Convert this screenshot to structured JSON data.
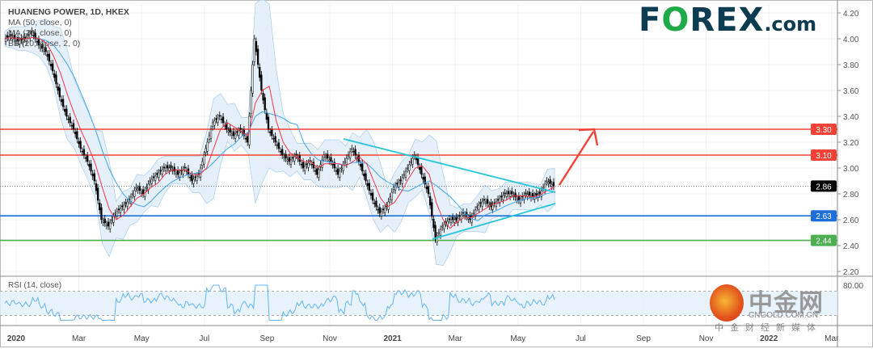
{
  "legend": {
    "title": "HUANENG POWER, 1D, HKEX",
    "ma50": "MA (50, close, 0)",
    "ma20": "MA (20, close, 0)",
    "bb": "BB (20, close, 2, 0)",
    "rsi": "RSI (14, close)"
  },
  "logo": {
    "f": "F",
    "o": "O",
    "rex": "REX",
    "com": ".com"
  },
  "watermark": {
    "cn": "中金网",
    "url": "CNGOLD.COM.CN",
    "sub": "中金财经新媒体"
  },
  "colors": {
    "candle": "#000000",
    "ma20": "#f23645",
    "ma50": "#42a5f5",
    "bb_fill": "#dbeaf8",
    "trendline": "#26c6da",
    "arrow": "#f44336",
    "resistance": "#f44336",
    "support_blue": "#1e6fd9",
    "support_green": "#4caf50",
    "rsi": "#64b5f6"
  },
  "chart_data": {
    "type": "candlestick",
    "title": "HUANENG POWER, 1D, HKEX",
    "interval": "1D",
    "closes": [
      4.0,
      4.02,
      3.98,
      4.0,
      4.05,
      3.95,
      3.9,
      3.75,
      3.55,
      3.4,
      3.3,
      3.15,
      3.05,
      2.9,
      2.6,
      2.55,
      2.65,
      2.7,
      2.75,
      2.85,
      2.8,
      2.9,
      2.95,
      3.0,
      3.0,
      2.95,
      3.0,
      2.9,
      2.95,
      3.15,
      3.35,
      3.4,
      3.3,
      3.25,
      3.3,
      3.2,
      4.0,
      3.6,
      3.3,
      3.2,
      3.1,
      3.05,
      3.1,
      3.0,
      3.05,
      2.95,
      3.1,
      3.05,
      2.95,
      3.05,
      3.15,
      3.05,
      2.9,
      2.75,
      2.65,
      2.7,
      2.85,
      2.9,
      3.0,
      3.1,
      2.95,
      2.8,
      2.45,
      2.55,
      2.6,
      2.6,
      2.65,
      2.6,
      2.7,
      2.75,
      2.7,
      2.75,
      2.8,
      2.8,
      2.75,
      2.8,
      2.78,
      2.8,
      2.9,
      2.86
    ],
    "last_price": 2.86,
    "horizontal_levels": [
      {
        "value": 3.3,
        "label": "3.30",
        "color": "#f44336"
      },
      {
        "value": 3.1,
        "label": "3.10",
        "color": "#f44336"
      },
      {
        "value": 2.63,
        "label": "2.63",
        "color": "#1e6fd9"
      },
      {
        "value": 2.44,
        "label": "2.44",
        "color": "#4caf50"
      }
    ],
    "y_ticks": [
      "4.20",
      "4.00",
      "3.80",
      "3.60",
      "3.40",
      "3.20",
      "3.00",
      "2.80",
      "2.60",
      "2.40",
      "2.20"
    ],
    "ylim": [
      2.2,
      4.2
    ],
    "x_ticks": [
      "2020",
      "Mar",
      "May",
      "Jul",
      "Sep",
      "Nov",
      "2021",
      "Mar",
      "May",
      "Jul",
      "Sep",
      "Nov",
      "2022",
      "Mar"
    ],
    "rsi_ticks": [
      "80.00"
    ],
    "rsi_band": [
      30,
      70
    ],
    "grid": true
  }
}
